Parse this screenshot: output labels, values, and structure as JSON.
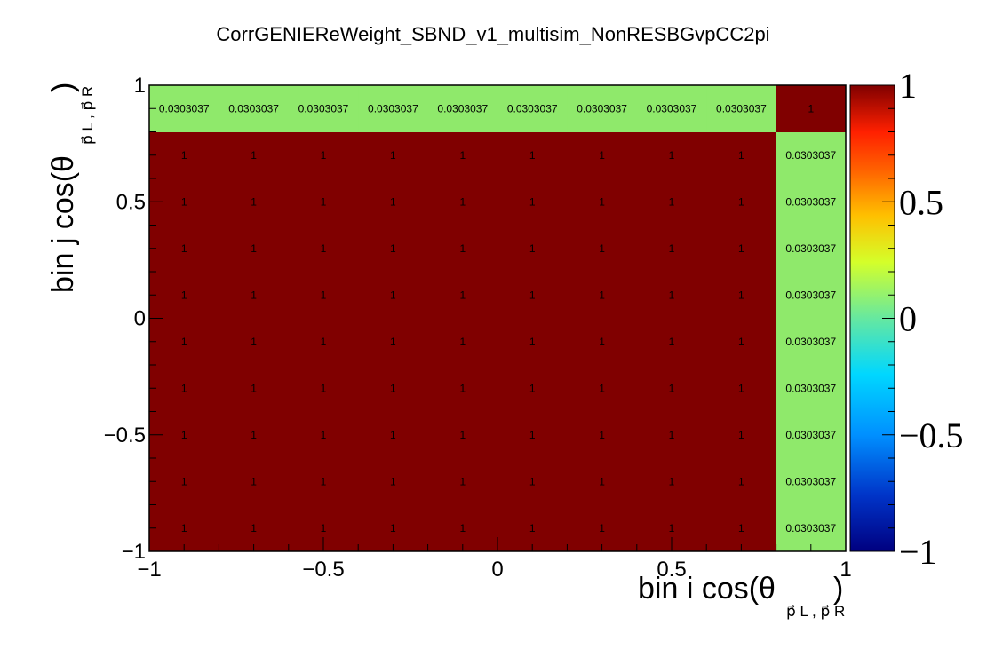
{
  "chart_data": {
    "type": "heatmap",
    "title": "CorrGENIEReWeight_SBND_v1_multisim_NonRESBGvpCC2pi",
    "xlabel": {
      "prefix": "bin i cos(θ",
      "sub": "p⃗ L , p⃗ R",
      "suffix": ")"
    },
    "ylabel": {
      "prefix": "bin j cos(θ",
      "sub": "p⃗ L , p⃗ R",
      "suffix": ")"
    },
    "xlim": [
      -1,
      1
    ],
    "ylim": [
      -1,
      1
    ],
    "zlim": [
      -1,
      1
    ],
    "x_bins": [
      -1.0,
      -0.8,
      -0.6,
      -0.4,
      -0.2,
      0.0,
      0.2,
      0.4,
      0.6,
      0.8,
      1.0
    ],
    "y_bins": [
      -1.0,
      -0.8,
      -0.6,
      -0.4,
      -0.2,
      0.0,
      0.2,
      0.4,
      0.6,
      0.8,
      1.0
    ],
    "x_tick_labels": [
      {
        "value": -1,
        "label": "−1"
      },
      {
        "value": -0.5,
        "label": "−0.5"
      },
      {
        "value": 0,
        "label": "0"
      },
      {
        "value": 0.5,
        "label": "0.5"
      },
      {
        "value": 1,
        "label": "1"
      }
    ],
    "y_tick_labels": [
      {
        "value": -1,
        "label": "−1"
      },
      {
        "value": -0.5,
        "label": "−0.5"
      },
      {
        "value": 0,
        "label": "0"
      },
      {
        "value": 0.5,
        "label": "0.5"
      },
      {
        "value": 1,
        "label": "1"
      }
    ],
    "palette_tick_labels": [
      {
        "value": 1,
        "label": "1"
      },
      {
        "value": 0.5,
        "label": "0.5"
      },
      {
        "value": 0,
        "label": "0"
      },
      {
        "value": -0.5,
        "label": "−0.5"
      },
      {
        "value": -1,
        "label": "−1"
      }
    ],
    "values": [
      [
        1,
        1,
        1,
        1,
        1,
        1,
        1,
        1,
        1,
        0.0303037
      ],
      [
        1,
        1,
        1,
        1,
        1,
        1,
        1,
        1,
        1,
        0.0303037
      ],
      [
        1,
        1,
        1,
        1,
        1,
        1,
        1,
        1,
        1,
        0.0303037
      ],
      [
        1,
        1,
        1,
        1,
        1,
        1,
        1,
        1,
        1,
        0.0303037
      ],
      [
        1,
        1,
        1,
        1,
        1,
        1,
        1,
        1,
        1,
        0.0303037
      ],
      [
        1,
        1,
        1,
        1,
        1,
        1,
        1,
        1,
        1,
        0.0303037
      ],
      [
        1,
        1,
        1,
        1,
        1,
        1,
        1,
        1,
        1,
        0.0303037
      ],
      [
        1,
        1,
        1,
        1,
        1,
        1,
        1,
        1,
        1,
        0.0303037
      ],
      [
        1,
        1,
        1,
        1,
        1,
        1,
        1,
        1,
        1,
        0.0303037
      ],
      [
        0.0303037,
        0.0303037,
        0.0303037,
        0.0303037,
        0.0303037,
        0.0303037,
        0.0303037,
        0.0303037,
        0.0303037,
        1
      ]
    ],
    "cell_labels": [
      [
        "1",
        "1",
        "1",
        "1",
        "1",
        "1",
        "1",
        "1",
        "1",
        "0.0303037"
      ],
      [
        "1",
        "1",
        "1",
        "1",
        "1",
        "1",
        "1",
        "1",
        "1",
        "0.0303037"
      ],
      [
        "1",
        "1",
        "1",
        "1",
        "1",
        "1",
        "1",
        "1",
        "1",
        "0.0303037"
      ],
      [
        "1",
        "1",
        "1",
        "1",
        "1",
        "1",
        "1",
        "1",
        "1",
        "0.0303037"
      ],
      [
        "1",
        "1",
        "1",
        "1",
        "1",
        "1",
        "1",
        "1",
        "1",
        "0.0303037"
      ],
      [
        "1",
        "1",
        "1",
        "1",
        "1",
        "1",
        "1",
        "1",
        "1",
        "0.0303037"
      ],
      [
        "1",
        "1",
        "1",
        "1",
        "1",
        "1",
        "1",
        "1",
        "1",
        "0.0303037"
      ],
      [
        "1",
        "1",
        "1",
        "1",
        "1",
        "1",
        "1",
        "1",
        "1",
        "0.0303037"
      ],
      [
        "1",
        "1",
        "1",
        "1",
        "1",
        "1",
        "1",
        "1",
        "1",
        "0.0303037"
      ],
      [
        "0.0303037",
        "0.0303037",
        "0.0303037",
        "0.0303037",
        "0.0303037",
        "0.0303037",
        "0.0303037",
        "0.0303037",
        "0.0303037",
        "1"
      ]
    ],
    "colorscale": "rainbow",
    "colors": {
      "high": "#800000",
      "mid_low": "#8fe96b"
    }
  }
}
